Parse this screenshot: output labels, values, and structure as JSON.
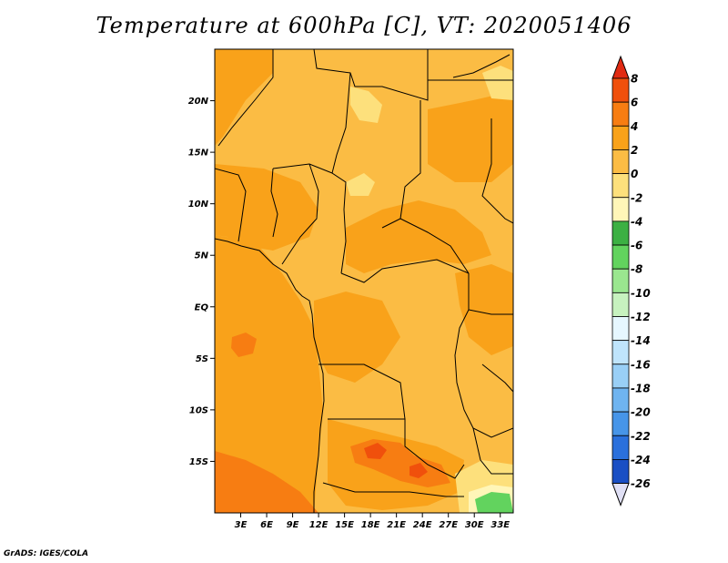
{
  "title": "Temperature at 600hPa [C], VT: 2020051406",
  "credit": "GrADS: IGES/COLA",
  "map": {
    "lon_range": [
      0,
      34.5
    ],
    "lat_range": [
      -20,
      25
    ],
    "x_ticks": [
      "3E",
      "6E",
      "9E",
      "12E",
      "15E",
      "18E",
      "21E",
      "24E",
      "27E",
      "30E",
      "33E"
    ],
    "y_ticks": [
      "20N",
      "15N",
      "10N",
      "5N",
      "EQ",
      "5S",
      "10S",
      "15S"
    ]
  },
  "colorbar": {
    "labels": [
      "8",
      "6",
      "4",
      "2",
      "0",
      "-2",
      "-4",
      "-6",
      "-8",
      "-10",
      "-12",
      "-14",
      "-16",
      "-18",
      "-20",
      "-22",
      "-24",
      "-26"
    ],
    "colors": [
      "#e02a12",
      "#f0500c",
      "#f77d12",
      "#f9a21a",
      "#fbbc44",
      "#fde07c",
      "#fff6b8",
      "#3cb043",
      "#62d35e",
      "#9ae68f",
      "#c7f2bf",
      "#e6f7ff",
      "#bfe4fb",
      "#99cff6",
      "#6fb4f0",
      "#4795e8",
      "#2a70dc",
      "#1a4fc4",
      "#0f2f96",
      "#0a0e6a",
      "#e0e0f5"
    ],
    "top_arrow_color": "#e02a12",
    "bottom_arrow_color": "#e0e0f5"
  }
}
